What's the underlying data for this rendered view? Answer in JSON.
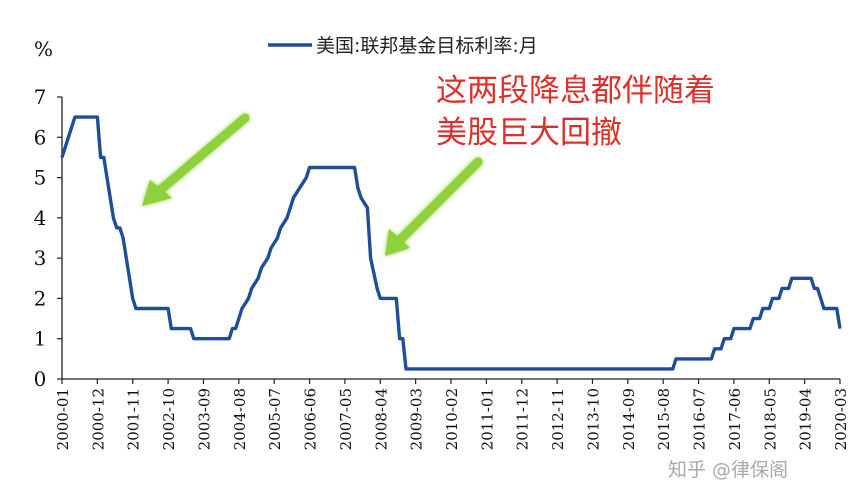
{
  "colors": {
    "line": "#1f4e96",
    "annotation": "#d8322a",
    "arrow": "#8fd13c",
    "axis": "#222222"
  },
  "annotation": {
    "line1": "这两段降息都伴随着",
    "line2": "美股巨大回撤"
  },
  "watermark": "知乎 @律保阁",
  "chart_data": {
    "type": "line",
    "ylabel": "%",
    "ylim": [
      0,
      7
    ],
    "yticks": [
      0,
      1,
      2,
      3,
      4,
      5,
      6,
      7
    ],
    "xlabel": "",
    "x_tick_labels": [
      "2000-01",
      "2000-12",
      "2001-11",
      "2002-10",
      "2003-09",
      "2004-08",
      "2005-07",
      "2006-06",
      "2007-05",
      "2008-04",
      "2009-03",
      "2010-02",
      "2011-01",
      "2011-12",
      "2012-11",
      "2013-10",
      "2014-09",
      "2015-08",
      "2016-07",
      "2017-06",
      "2018-05",
      "2019-04",
      "2020-03"
    ],
    "grid": false,
    "legend_position": "top",
    "series": [
      {
        "name": "美国:联邦基金目标利率:月",
        "points": [
          [
            "2000-01",
            5.5
          ],
          [
            "2000-02",
            5.75
          ],
          [
            "2000-03",
            6.0
          ],
          [
            "2000-05",
            6.5
          ],
          [
            "2000-12",
            6.5
          ],
          [
            "2001-01",
            5.5
          ],
          [
            "2001-02",
            5.5
          ],
          [
            "2001-03",
            5.0
          ],
          [
            "2001-04",
            4.5
          ],
          [
            "2001-05",
            4.0
          ],
          [
            "2001-06",
            3.75
          ],
          [
            "2001-07",
            3.75
          ],
          [
            "2001-08",
            3.5
          ],
          [
            "2001-09",
            3.0
          ],
          [
            "2001-10",
            2.5
          ],
          [
            "2001-11",
            2.0
          ],
          [
            "2001-12",
            1.75
          ],
          [
            "2002-10",
            1.75
          ],
          [
            "2002-11",
            1.25
          ],
          [
            "2003-05",
            1.25
          ],
          [
            "2003-06",
            1.0
          ],
          [
            "2004-05",
            1.0
          ],
          [
            "2004-06",
            1.25
          ],
          [
            "2004-07",
            1.25
          ],
          [
            "2004-08",
            1.5
          ],
          [
            "2004-09",
            1.75
          ],
          [
            "2004-11",
            2.0
          ],
          [
            "2004-12",
            2.25
          ],
          [
            "2005-02",
            2.5
          ],
          [
            "2005-03",
            2.75
          ],
          [
            "2005-05",
            3.0
          ],
          [
            "2005-06",
            3.25
          ],
          [
            "2005-08",
            3.5
          ],
          [
            "2005-09",
            3.75
          ],
          [
            "2005-11",
            4.0
          ],
          [
            "2005-12",
            4.25
          ],
          [
            "2006-01",
            4.5
          ],
          [
            "2006-03",
            4.75
          ],
          [
            "2006-05",
            5.0
          ],
          [
            "2006-06",
            5.25
          ],
          [
            "2007-08",
            5.25
          ],
          [
            "2007-09",
            4.75
          ],
          [
            "2007-10",
            4.5
          ],
          [
            "2007-12",
            4.25
          ],
          [
            "2008-01",
            3.0
          ],
          [
            "2008-03",
            2.25
          ],
          [
            "2008-04",
            2.0
          ],
          [
            "2008-09",
            2.0
          ],
          [
            "2008-10",
            1.0
          ],
          [
            "2008-11",
            1.0
          ],
          [
            "2008-12",
            0.25
          ],
          [
            "2015-11",
            0.25
          ],
          [
            "2015-12",
            0.5
          ],
          [
            "2016-11",
            0.5
          ],
          [
            "2016-12",
            0.75
          ],
          [
            "2017-02",
            0.75
          ],
          [
            "2017-03",
            1.0
          ],
          [
            "2017-05",
            1.0
          ],
          [
            "2017-06",
            1.25
          ],
          [
            "2017-11",
            1.25
          ],
          [
            "2017-12",
            1.5
          ],
          [
            "2018-02",
            1.5
          ],
          [
            "2018-03",
            1.75
          ],
          [
            "2018-05",
            1.75
          ],
          [
            "2018-06",
            2.0
          ],
          [
            "2018-08",
            2.0
          ],
          [
            "2018-09",
            2.25
          ],
          [
            "2018-11",
            2.25
          ],
          [
            "2018-12",
            2.5
          ],
          [
            "2019-06",
            2.5
          ],
          [
            "2019-07",
            2.25
          ],
          [
            "2019-08",
            2.25
          ],
          [
            "2019-09",
            2.0
          ],
          [
            "2019-10",
            1.75
          ],
          [
            "2020-02",
            1.75
          ],
          [
            "2020-03",
            1.25
          ]
        ]
      }
    ]
  }
}
